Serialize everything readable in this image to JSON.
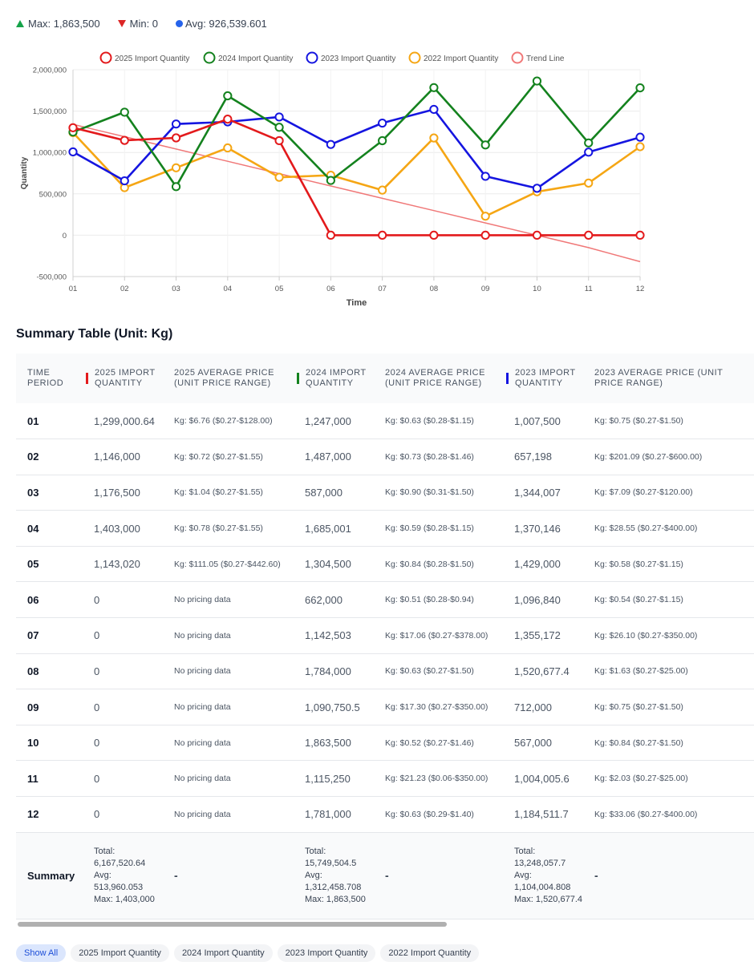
{
  "stats": {
    "max_label": "Max: 1,863,500",
    "min_label": "Min: 0",
    "avg_label": "Avg: 926,539.601"
  },
  "chart_data": {
    "type": "line",
    "xlabel": "Time",
    "ylabel": "Quantity",
    "ylim": [
      -500000,
      2000000
    ],
    "y_ticks": [
      -500000,
      0,
      500000,
      1000000,
      1500000,
      2000000
    ],
    "y_tick_labels": [
      "-500,000",
      "0",
      "500,000",
      "1,000,000",
      "1,500,000",
      "2,000,000"
    ],
    "categories": [
      "01",
      "02",
      "03",
      "04",
      "05",
      "06",
      "07",
      "08",
      "09",
      "10",
      "11",
      "12"
    ],
    "legend_position": "top-center",
    "series": [
      {
        "name": "2025 Import Quantity",
        "color": "#e31a1c",
        "values": [
          1299000.64,
          1146000,
          1176500,
          1403000,
          1143020,
          0,
          0,
          0,
          0,
          0,
          0,
          0
        ]
      },
      {
        "name": "2024 Import Quantity",
        "color": "#14821e",
        "values": [
          1247000,
          1487000,
          587000,
          1685001,
          1304500,
          662000,
          1142503,
          1784000,
          1090750.5,
          1863500,
          1115250,
          1781000
        ]
      },
      {
        "name": "2023 Import Quantity",
        "color": "#1515e0",
        "values": [
          1007500,
          657198,
          1344007,
          1370146,
          1429000,
          1096840,
          1355172,
          1520677.4,
          712000,
          567000,
          1004005.6,
          1184511.7
        ]
      },
      {
        "name": "2022 Import Quantity",
        "color": "#f5a614",
        "values": [
          1240000,
          575000,
          815000,
          1055000,
          700000,
          725000,
          545000,
          1175000,
          230000,
          525000,
          630000,
          1070000
        ]
      },
      {
        "name": "Trend Line",
        "color": "#f07878",
        "trend": true,
        "values": [
          1340000,
          1191000,
          1042000,
          893000,
          744000,
          595000,
          446000,
          297000,
          148000,
          -1000,
          -150000,
          -320000
        ]
      }
    ]
  },
  "table": {
    "title": "Summary Table (Unit: Kg)",
    "headers": [
      {
        "label": "Time Period",
        "bar": ""
      },
      {
        "label": "2025 Import Quantity",
        "bar": "#e31a1c"
      },
      {
        "label": "2025 Average Price (Unit Price Range)",
        "bar": ""
      },
      {
        "label": "2024 Import Quantity",
        "bar": "#14821e"
      },
      {
        "label": "2024 Average Price (Unit Price Range)",
        "bar": ""
      },
      {
        "label": "2023 Import Quantity",
        "bar": "#1515e0"
      },
      {
        "label": "2023 Average Price (Unit Price Range)",
        "bar": ""
      }
    ],
    "rows": [
      [
        "01",
        "1,299,000.64",
        "Kg: $6.76 ($0.27-$128.00)",
        "1,247,000",
        "Kg: $0.63 ($0.28-$1.15)",
        "1,007,500",
        "Kg: $0.75 ($0.27-$1.50)"
      ],
      [
        "02",
        "1,146,000",
        "Kg: $0.72 ($0.27-$1.55)",
        "1,487,000",
        "Kg: $0.73 ($0.28-$1.46)",
        "657,198",
        "Kg: $201.09 ($0.27-$600.00)"
      ],
      [
        "03",
        "1,176,500",
        "Kg: $1.04 ($0.27-$1.55)",
        "587,000",
        "Kg: $0.90 ($0.31-$1.50)",
        "1,344,007",
        "Kg: $7.09 ($0.27-$120.00)"
      ],
      [
        "04",
        "1,403,000",
        "Kg: $0.78 ($0.27-$1.55)",
        "1,685,001",
        "Kg: $0.59 ($0.28-$1.15)",
        "1,370,146",
        "Kg: $28.55 ($0.27-$400.00)"
      ],
      [
        "05",
        "1,143,020",
        "Kg: $111.05 ($0.27-$442.60)",
        "1,304,500",
        "Kg: $0.84 ($0.28-$1.50)",
        "1,429,000",
        "Kg: $0.58 ($0.27-$1.15)"
      ],
      [
        "06",
        "0",
        "No pricing data",
        "662,000",
        "Kg: $0.51 ($0.28-$0.94)",
        "1,096,840",
        "Kg: $0.54 ($0.27-$1.15)"
      ],
      [
        "07",
        "0",
        "No pricing data",
        "1,142,503",
        "Kg: $17.06 ($0.27-$378.00)",
        "1,355,172",
        "Kg: $26.10 ($0.27-$350.00)"
      ],
      [
        "08",
        "0",
        "No pricing data",
        "1,784,000",
        "Kg: $0.63 ($0.27-$1.50)",
        "1,520,677.4",
        "Kg: $1.63 ($0.27-$25.00)"
      ],
      [
        "09",
        "0",
        "No pricing data",
        "1,090,750.5",
        "Kg: $17.30 ($0.27-$350.00)",
        "712,000",
        "Kg: $0.75 ($0.27-$1.50)"
      ],
      [
        "10",
        "0",
        "No pricing data",
        "1,863,500",
        "Kg: $0.52 ($0.27-$1.46)",
        "567,000",
        "Kg: $0.84 ($0.27-$1.50)"
      ],
      [
        "11",
        "0",
        "No pricing data",
        "1,115,250",
        "Kg: $21.23 ($0.06-$350.00)",
        "1,004,005.6",
        "Kg: $2.03 ($0.27-$25.00)"
      ],
      [
        "12",
        "0",
        "No pricing data",
        "1,781,000",
        "Kg: $0.63 ($0.29-$1.40)",
        "1,184,511.7",
        "Kg: $33.06 ($0.27-$400.00)"
      ]
    ],
    "summary": {
      "label": "Summary",
      "dash": "-",
      "y2025": {
        "total": "Total: 6,167,520.64",
        "avg": "Avg: 513,960.053",
        "max": "Max: 1,403,000"
      },
      "y2024": {
        "total": "Total: 15,749,504.5",
        "avg": "Avg: 1,312,458.708",
        "max": "Max: 1,863,500"
      },
      "y2023": {
        "total": "Total: 13,248,057.7",
        "avg": "Avg: 1,104,004.808",
        "max": "Max: 1,520,677.4"
      }
    }
  },
  "filters": {
    "show_all": "Show All",
    "items": [
      "2025 Import Quantity",
      "2024 Import Quantity",
      "2023 Import Quantity",
      "2022 Import Quantity"
    ]
  }
}
